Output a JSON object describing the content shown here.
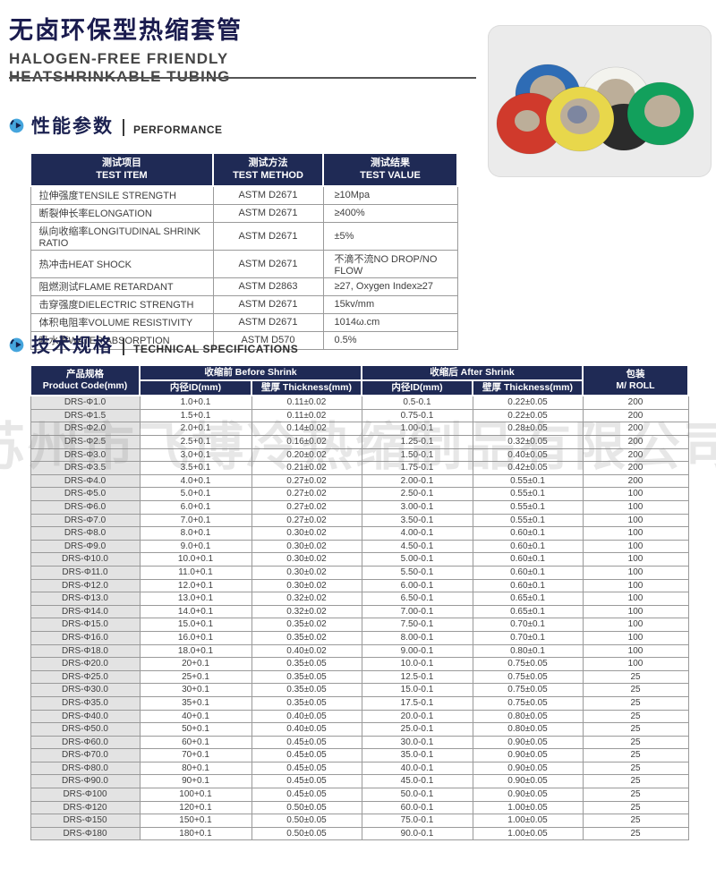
{
  "page": {
    "title_cn": "无卤环保型热缩套管",
    "subtitle_en_line1": "HALOGEN-FREE FRIENDLY",
    "subtitle_en_line2": "HEATSHRINKABLE TUBING"
  },
  "colors": {
    "title_navy": "#1a1b4e",
    "table_header_navy": "#1f2a55",
    "section_icon_blue": "#45a5dd",
    "first_column_gray": "#e3e3e3",
    "table_border_gray": "#9a9a9a"
  },
  "watermark_text": "苏州市飞博冷热缩制品有限公司",
  "sections": {
    "performance": {
      "title_cn": "性能参数",
      "title_en": "PERFORMANCE"
    },
    "specs": {
      "title_cn": "技术规格",
      "title_en": "TECHNICAL SPECIFICATIONS"
    }
  },
  "performance_table": {
    "headers": [
      {
        "cn": "测试项目",
        "en": "TEST ITEM"
      },
      {
        "cn": "测试方法",
        "en": "TEST METHOD"
      },
      {
        "cn": "测试结果",
        "en": "TEST VALUE"
      }
    ],
    "rows": [
      [
        "拉伸强度TENSILE STRENGTH",
        "ASTM D2671",
        "≥10Mpa"
      ],
      [
        "断裂伸长率ELONGATION",
        "ASTM D2671",
        "≥400%"
      ],
      [
        "纵向收缩率LONGITUDINAL SHRINK RATIO",
        "ASTM D2671",
        "±5%"
      ],
      [
        "热冲击HEAT SHOCK",
        "ASTM D2671",
        "不滴不流NO DROP/NO FLOW"
      ],
      [
        "阻燃测试FLAME RETARDANT",
        "ASTM D2863",
        "≥27, Oxygen Index≥27"
      ],
      [
        "击穿强度DIELECTRIC STRENGTH",
        "ASTM D2671",
        "15kv/mm"
      ],
      [
        "体积电阻率VOLUME RESISTIVITY",
        "ASTM D2671",
        "1014ω.cm"
      ],
      [
        "吸水率WATER ABSORPTION",
        "ASTM D570",
        "0.5%"
      ]
    ]
  },
  "spec_table": {
    "col_product": {
      "cn": "产品规格",
      "en": "Product Code(mm)"
    },
    "group_before": "收缩前 Before Shrink",
    "group_after": "收缩后 After Shrink",
    "sub_headers": [
      "内径ID(mm)",
      "壁厚 Thickness(mm)",
      "内径ID(mm)",
      "壁厚 Thickness(mm)"
    ],
    "col_roll": {
      "cn": "包装",
      "en": "M/ ROLL"
    },
    "rows": [
      [
        "DRS-Φ1.0",
        "1.0+0.1",
        "0.11±0.02",
        "0.5-0.1",
        "0.22±0.05",
        "200"
      ],
      [
        "DRS-Φ1.5",
        "1.5+0.1",
        "0.11±0.02",
        "0.75-0.1",
        "0.22±0.05",
        "200"
      ],
      [
        "DRS-Φ2.0",
        "2.0+0.1",
        "0.14±0.02",
        "1.00-0.1",
        "0.28±0.05",
        "200"
      ],
      [
        "DRS-Φ2.5",
        "2.5+0.1",
        "0.16±0.02",
        "1.25-0.1",
        "0.32±0.05",
        "200"
      ],
      [
        "DRS-Φ3.0",
        "3.0+0.1",
        "0.20±0.02",
        "1.50-0.1",
        "0.40±0.05",
        "200"
      ],
      [
        "DRS-Φ3.5",
        "3.5+0.1",
        "0.21±0.02",
        "1.75-0.1",
        "0.42±0.05",
        "200"
      ],
      [
        "DRS-Φ4.0",
        "4.0+0.1",
        "0.27±0.02",
        "2.00-0.1",
        "0.55±0.1",
        "200"
      ],
      [
        "DRS-Φ5.0",
        "5.0+0.1",
        "0.27±0.02",
        "2.50-0.1",
        "0.55±0.1",
        "100"
      ],
      [
        "DRS-Φ6.0",
        "6.0+0.1",
        "0.27±0.02",
        "3.00-0.1",
        "0.55±0.1",
        "100"
      ],
      [
        "DRS-Φ7.0",
        "7.0+0.1",
        "0.27±0.02",
        "3.50-0.1",
        "0.55±0.1",
        "100"
      ],
      [
        "DRS-Φ8.0",
        "8.0+0.1",
        "0.30±0.02",
        "4.00-0.1",
        "0.60±0.1",
        "100"
      ],
      [
        "DRS-Φ9.0",
        "9.0+0.1",
        "0.30±0.02",
        "4.50-0.1",
        "0.60±0.1",
        "100"
      ],
      [
        "DRS-Φ10.0",
        "10.0+0.1",
        "0.30±0.02",
        "5.00-0.1",
        "0.60±0.1",
        "100"
      ],
      [
        "DRS-Φ11.0",
        "11.0+0.1",
        "0.30±0.02",
        "5.50-0.1",
        "0.60±0.1",
        "100"
      ],
      [
        "DRS-Φ12.0",
        "12.0+0.1",
        "0.30±0.02",
        "6.00-0.1",
        "0.60±0.1",
        "100"
      ],
      [
        "DRS-Φ13.0",
        "13.0+0.1",
        "0.32±0.02",
        "6.50-0.1",
        "0.65±0.1",
        "100"
      ],
      [
        "DRS-Φ14.0",
        "14.0+0.1",
        "0.32±0.02",
        "7.00-0.1",
        "0.65±0.1",
        "100"
      ],
      [
        "DRS-Φ15.0",
        "15.0+0.1",
        "0.35±0.02",
        "7.50-0.1",
        "0.70±0.1",
        "100"
      ],
      [
        "DRS-Φ16.0",
        "16.0+0.1",
        "0.35±0.02",
        "8.00-0.1",
        "0.70±0.1",
        "100"
      ],
      [
        "DRS-Φ18.0",
        "18.0+0.1",
        "0.40±0.02",
        "9.00-0.1",
        "0.80±0.1",
        "100"
      ],
      [
        "DRS-Φ20.0",
        "20+0.1",
        "0.35±0.05",
        "10.0-0.1",
        "0.75±0.05",
        "100"
      ],
      [
        "DRS-Φ25.0",
        "25+0.1",
        "0.35±0.05",
        "12.5-0.1",
        "0.75±0.05",
        "25"
      ],
      [
        "DRS-Φ30.0",
        "30+0.1",
        "0.35±0.05",
        "15.0-0.1",
        "0.75±0.05",
        "25"
      ],
      [
        "DRS-Φ35.0",
        "35+0.1",
        "0.35±0.05",
        "17.5-0.1",
        "0.75±0.05",
        "25"
      ],
      [
        "DRS-Φ40.0",
        "40+0.1",
        "0.40±0.05",
        "20.0-0.1",
        "0.80±0.05",
        "25"
      ],
      [
        "DRS-Φ50.0",
        "50+0.1",
        "0.40±0.05",
        "25.0-0.1",
        "0.80±0.05",
        "25"
      ],
      [
        "DRS-Φ60.0",
        "60+0.1",
        "0.45±0.05",
        "30.0-0.1",
        "0.90±0.05",
        "25"
      ],
      [
        "DRS-Φ70.0",
        "70+0.1",
        "0.45±0.05",
        "35.0-0.1",
        "0.90±0.05",
        "25"
      ],
      [
        "DRS-Φ80.0",
        "80+0.1",
        "0.45±0.05",
        "40.0-0.1",
        "0.90±0.05",
        "25"
      ],
      [
        "DRS-Φ90.0",
        "90+0.1",
        "0.45±0.05",
        "45.0-0.1",
        "0.90±0.05",
        "25"
      ],
      [
        "DRS-Φ100",
        "100+0.1",
        "0.45±0.05",
        "50.0-0.1",
        "0.90±0.05",
        "25"
      ],
      [
        "DRS-Φ120",
        "120+0.1",
        "0.50±0.05",
        "60.0-0.1",
        "1.00±0.05",
        "25"
      ],
      [
        "DRS-Φ150",
        "150+0.1",
        "0.50±0.05",
        "75.0-0.1",
        "1.00±0.05",
        "25"
      ],
      [
        "DRS-Φ180",
        "180+0.1",
        "0.50±0.05",
        "90.0-0.1",
        "1.00±0.05",
        "25"
      ]
    ]
  },
  "product_image": {
    "rolls": [
      {
        "name": "blue-roll",
        "color": "#2e6cb5"
      },
      {
        "name": "red-roll",
        "color": "#d03a2c"
      },
      {
        "name": "white-roll",
        "color": "#f3f3ee"
      },
      {
        "name": "black-roll",
        "color": "#2b2b2b"
      },
      {
        "name": "yellow-roll",
        "color": "#e8d74b"
      },
      {
        "name": "green-roll",
        "color": "#12a05c"
      }
    ]
  }
}
